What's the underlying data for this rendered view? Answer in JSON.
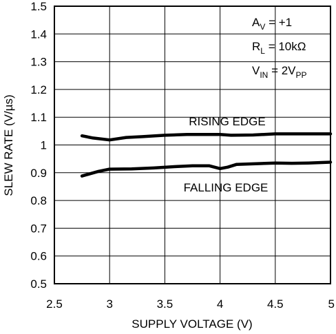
{
  "chart_data": {
    "type": "line",
    "xlabel": "SUPPLY VOLTAGE (V)",
    "ylabel": "SLEW RATE (V/µs)",
    "xlim": [
      2.5,
      5
    ],
    "ylim": [
      0.5,
      1.5
    ],
    "x_ticks": [
      "2.5",
      "3",
      "3.5",
      "4",
      "4.5",
      "5"
    ],
    "y_ticks": [
      "0.5",
      "0.6",
      "0.7",
      "0.8",
      "0.9",
      "1",
      "1.1",
      "1.2",
      "1.3",
      "1.4",
      "1.5"
    ],
    "grid": true,
    "annotations": [
      {
        "main": "A",
        "sub": "V",
        "rest": " = +1"
      },
      {
        "main": "R",
        "sub": "L",
        "rest": " = 10kΩ"
      },
      {
        "main": "V",
        "sub": "IN",
        "rest": " = 2V",
        "sub2": "PP"
      }
    ],
    "series": [
      {
        "name": "RISING EDGE",
        "x": [
          2.75,
          2.85,
          3.0,
          3.15,
          3.3,
          3.5,
          3.7,
          4.0,
          4.1,
          4.3,
          4.5,
          4.7,
          5.0
        ],
        "y": [
          1.033,
          1.025,
          1.018,
          1.027,
          1.03,
          1.035,
          1.038,
          1.038,
          1.035,
          1.036,
          1.04,
          1.04,
          1.04
        ]
      },
      {
        "name": "FALLING EDGE",
        "x": [
          2.75,
          2.9,
          3.0,
          3.2,
          3.4,
          3.6,
          3.75,
          3.9,
          4.0,
          4.07,
          4.15,
          4.3,
          4.5,
          4.65,
          4.8,
          5.0
        ],
        "y": [
          0.888,
          0.905,
          0.913,
          0.914,
          0.917,
          0.922,
          0.925,
          0.925,
          0.915,
          0.92,
          0.93,
          0.932,
          0.935,
          0.934,
          0.935,
          0.938
        ]
      }
    ]
  }
}
